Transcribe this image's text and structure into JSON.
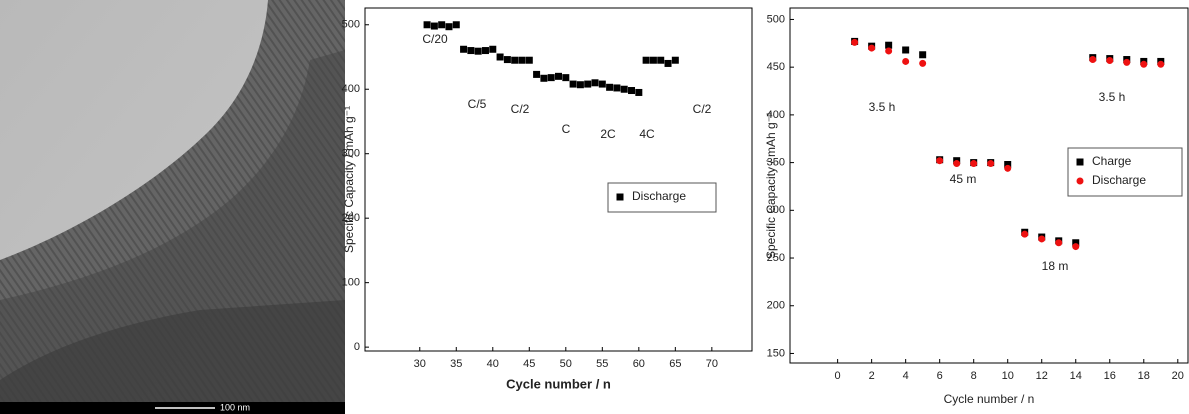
{
  "image": {
    "scale_bar": "100 nm"
  },
  "chart_data": [
    {
      "type": "scatter",
      "xlabel": "Cycle number / n",
      "ylabel": "Specific Capacity / mAh g⁻¹",
      "xlim": [
        22.5,
        75.5
      ],
      "xticks": [
        30,
        35,
        40,
        45,
        50,
        55,
        60,
        65,
        70
      ],
      "ylim": [
        -6,
        526
      ],
      "yticks": [
        0,
        100,
        200,
        300,
        400,
        500
      ],
      "x": [
        31,
        32,
        33,
        34,
        35,
        36,
        37,
        38,
        39,
        40,
        41,
        42,
        43,
        44,
        45,
        46,
        47,
        48,
        49,
        50,
        51,
        52,
        53,
        54,
        55,
        56,
        57,
        58,
        59,
        60,
        61,
        62,
        63,
        64,
        65
      ],
      "series": [
        {
          "name": "Discharge",
          "color": "#000000",
          "marker": "square",
          "values": [
            500,
            498,
            500,
            497,
            500,
            462,
            460,
            459,
            460,
            462,
            450,
            446,
            445,
            445,
            445,
            423,
            417,
            418,
            420,
            418,
            408,
            407,
            408,
            410,
            408,
            403,
            402,
            400,
            398,
            395,
            445,
            445,
            445,
            440,
            445
          ]
        }
      ],
      "annotations": [
        "C/20",
        "C/5",
        "C/2",
        "C",
        "2C",
        "4C",
        "C/2"
      ],
      "legend": "right"
    },
    {
      "type": "scatter",
      "xlabel": "Cycle number / n",
      "ylabel": "Specific Capacity / mAh g⁻¹",
      "xlim": [
        -2.8,
        20.6
      ],
      "xticks": [
        0,
        2,
        4,
        6,
        8,
        10,
        12,
        14,
        16,
        18,
        20
      ],
      "ylim": [
        140,
        512
      ],
      "yticks": [
        150,
        200,
        250,
        300,
        350,
        400,
        450,
        500
      ],
      "x": [
        1,
        2,
        3,
        4,
        5,
        6,
        7,
        8,
        9,
        10,
        11,
        12,
        13,
        14,
        15,
        16,
        17,
        18,
        19
      ],
      "series": [
        {
          "name": "Charge",
          "color": "#000000",
          "marker": "square",
          "values": [
            477,
            472,
            473,
            468,
            463,
            353,
            352,
            350,
            350,
            348,
            277,
            272,
            268,
            266,
            460,
            459,
            458,
            456,
            456
          ]
        },
        {
          "name": "Discharge",
          "color": "#ee1111",
          "marker": "circle",
          "values": [
            476,
            470,
            467,
            456,
            454,
            352,
            349,
            349,
            349,
            344,
            275,
            270,
            266,
            262,
            458,
            457,
            455,
            453,
            453
          ]
        }
      ],
      "annotations": [
        "3.5 h",
        "45 m",
        "18 m",
        "3.5 h"
      ],
      "legend": "upper right"
    }
  ]
}
